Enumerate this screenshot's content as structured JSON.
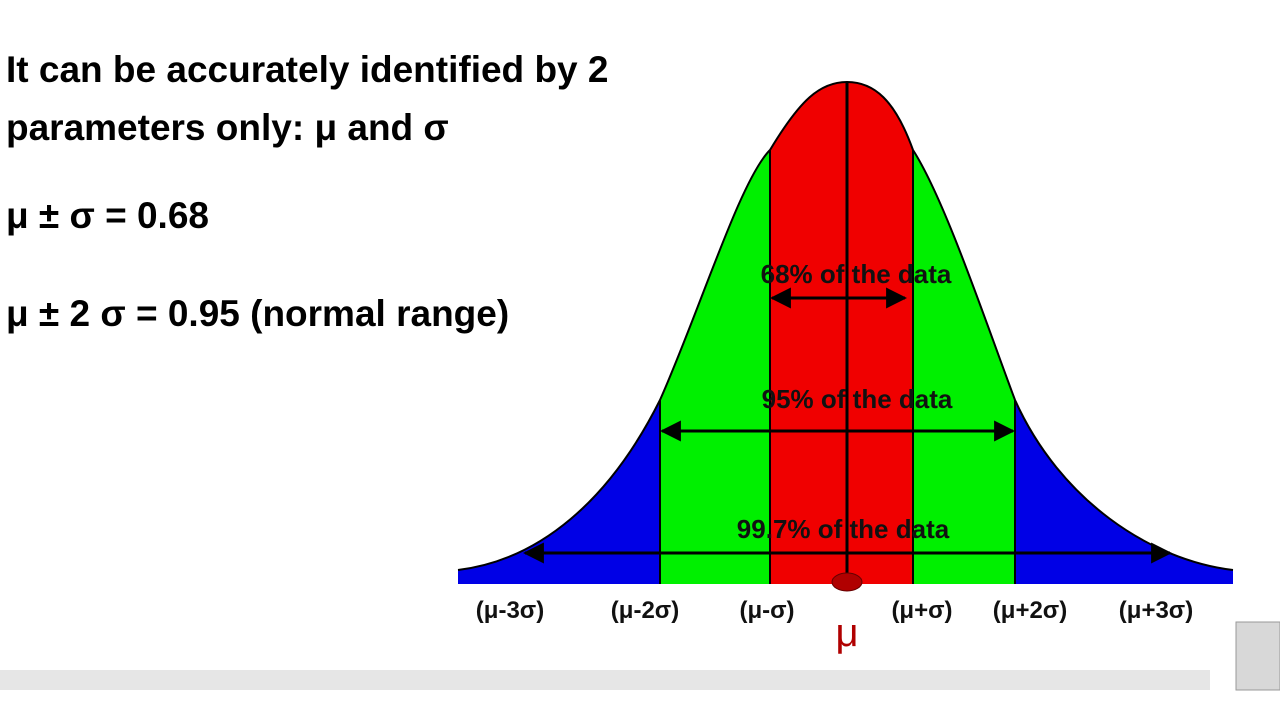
{
  "heading_lines": [
    "It can be accurately identified by 2",
    "parameters only: μ and σ"
  ],
  "formulas": [
    "μ ± σ = 0.68",
    "μ ± 2 σ = 0.95 (normal range)"
  ],
  "diagram": {
    "ranges": [
      "68% of the data",
      "95% of the data",
      "99.7% of the data"
    ],
    "axis_labels": [
      "(μ-3σ)",
      "(μ-2σ)",
      "(μ-σ)",
      "(μ+σ)",
      "(μ+2σ)",
      "(μ+3σ)"
    ],
    "mean_label": "μ"
  }
}
